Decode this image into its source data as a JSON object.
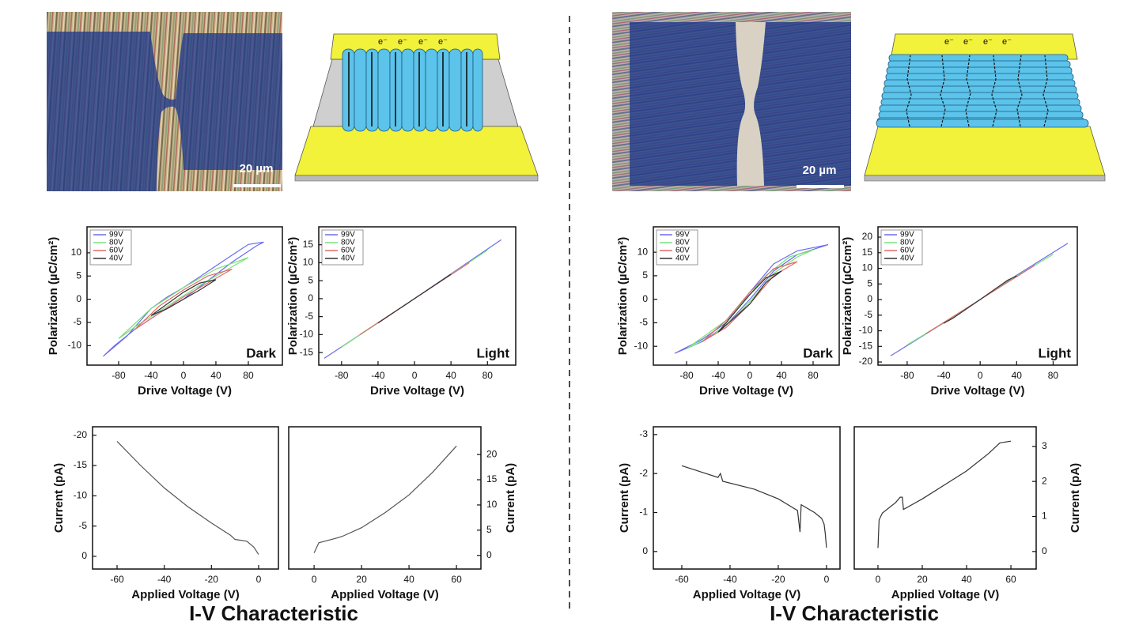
{
  "panels": [
    {
      "scale_bar": "20 µm",
      "electron_labels": [
        "e⁻",
        "e⁻",
        "e⁻",
        "e⁻"
      ],
      "caption": "I-V Characteristic"
    },
    {
      "scale_bar": "20 µm",
      "electron_labels": [
        "e⁻",
        "e⁻",
        "e⁻",
        "e⁻"
      ],
      "caption": "I-V Characteristic"
    }
  ],
  "chart_data": [
    {
      "type": "line",
      "x_label": "Drive Voltage (V)",
      "y_label": "Polarization (µC/cm²)",
      "annotation": "Dark",
      "legend": "upper left",
      "xlim": [
        -119,
        122
      ],
      "ylim": [
        -14.2,
        15.6
      ],
      "xticks": [
        -80,
        -40,
        0,
        40,
        80
      ],
      "yticks": [
        -10,
        -5,
        0,
        5,
        10
      ],
      "series": [
        {
          "name": "99V",
          "color": "#6b6bf0",
          "x": [
            -99,
            -70,
            -40,
            -20,
            0,
            30,
            60,
            80,
            99,
            90,
            60,
            30,
            0,
            -30,
            -60,
            -85,
            -99
          ],
          "values": [
            -12.3,
            -8,
            -2,
            0.5,
            2.5,
            6,
            9.5,
            11.8,
            12.3,
            11.5,
            8,
            4,
            0,
            -3,
            -6.5,
            -10,
            -12.3
          ]
        },
        {
          "name": "80V",
          "color": "#7ae07a",
          "x": [
            -80,
            -40,
            0,
            40,
            80,
            60,
            20,
            -20,
            -60,
            -80
          ],
          "values": [
            -8.5,
            -2,
            2.5,
            6.5,
            9,
            7,
            3,
            -1.5,
            -6,
            -8.5
          ]
        },
        {
          "name": "60V",
          "color": "#e06a6a",
          "x": [
            -60,
            -30,
            0,
            30,
            60,
            30,
            0,
            -30,
            -60
          ],
          "values": [
            -6.5,
            -1.5,
            2,
            5,
            6.5,
            3.5,
            0.5,
            -3,
            -6.5
          ]
        },
        {
          "name": "40V",
          "color": "#333333",
          "x": [
            -40,
            -20,
            0,
            20,
            40,
            20,
            0,
            -20,
            -40
          ],
          "values": [
            -3.5,
            -1,
            1.5,
            3.5,
            4.2,
            2,
            0,
            -2,
            -3.5
          ]
        }
      ]
    },
    {
      "type": "line",
      "x_label": "Drive Voltage (V)",
      "y_label": "Polarization (µC/cm²)",
      "annotation": "Light",
      "legend": "upper left",
      "xlim": [
        -105,
        111
      ],
      "ylim": [
        -18.5,
        20
      ],
      "xticks": [
        -80,
        -40,
        0,
        40,
        80
      ],
      "yticks": [
        -15,
        -10,
        -5,
        0,
        5,
        10,
        15
      ],
      "series": [
        {
          "name": "99V",
          "color": "#6b6bf0",
          "x": [
            -99,
            0,
            95
          ],
          "values": [
            -16.6,
            0,
            16.4
          ]
        },
        {
          "name": "80V",
          "color": "#7ae07a",
          "x": [
            -80,
            0,
            80
          ],
          "values": [
            -13.5,
            0,
            13.5
          ]
        },
        {
          "name": "60V",
          "color": "#e06a6a",
          "x": [
            -60,
            0,
            60
          ],
          "values": [
            -10,
            0,
            10
          ]
        },
        {
          "name": "40V",
          "color": "#333333",
          "x": [
            -40,
            0,
            40
          ],
          "values": [
            -6.8,
            0,
            6.8
          ]
        }
      ]
    },
    {
      "type": "line",
      "x_label": "Drive Voltage (V)",
      "y_label": "Polarization (µC/cm²)",
      "annotation": "Dark",
      "legend": "upper left",
      "xlim": [
        -122,
        113
      ],
      "ylim": [
        -14,
        15.4
      ],
      "xticks": [
        -80,
        -40,
        0,
        40,
        80
      ],
      "yticks": [
        -10,
        -5,
        0,
        5,
        10
      ],
      "series": [
        {
          "name": "99V",
          "color": "#6b6bf0",
          "x": [
            -95,
            -60,
            -30,
            0,
            30,
            60,
            99,
            60,
            30,
            0,
            -30,
            -60,
            -95
          ],
          "values": [
            -11.5,
            -9,
            -5.5,
            0,
            6,
            9.5,
            11.6,
            10.3,
            7.5,
            1.5,
            -5,
            -8.5,
            -11.5
          ]
        },
        {
          "name": "80V",
          "color": "#7ae07a",
          "x": [
            -80,
            -50,
            -20,
            0,
            30,
            60,
            80,
            50,
            20,
            0,
            -30,
            -80
          ],
          "values": [
            -10.5,
            -8,
            -4,
            -0.5,
            5.5,
            9,
            10.5,
            9,
            5,
            1,
            -4.5,
            -10.5
          ]
        },
        {
          "name": "60V",
          "color": "#e06a6a",
          "x": [
            -60,
            -30,
            0,
            30,
            60,
            30,
            0,
            -30,
            -60
          ],
          "values": [
            -9,
            -6,
            -1,
            5,
            8,
            6.5,
            1.5,
            -4.5,
            -9
          ]
        },
        {
          "name": "40V",
          "color": "#333333",
          "x": [
            -40,
            -20,
            0,
            20,
            40,
            20,
            0,
            -20,
            -40
          ],
          "values": [
            -7,
            -4,
            -1,
            3.5,
            6,
            4.5,
            1,
            -3,
            -7
          ]
        }
      ]
    },
    {
      "type": "line",
      "x_label": "Drive Voltage (V)",
      "y_label": "Polarization (µC/cm²)",
      "annotation": "Light",
      "legend": "upper left",
      "xlim": [
        -112,
        106.5
      ],
      "ylim": [
        -21,
        23.3
      ],
      "xticks": [
        -80,
        -40,
        0,
        40,
        80
      ],
      "yticks": [
        -20,
        -15,
        -10,
        -5,
        0,
        5,
        10,
        15,
        20
      ],
      "series": [
        {
          "name": "99V",
          "color": "#6b6bf0",
          "x": [
            -98,
            -40,
            0,
            40,
            96
          ],
          "values": [
            -18,
            -7.5,
            0,
            7.8,
            18
          ]
        },
        {
          "name": "80V",
          "color": "#7ae07a",
          "x": [
            -80,
            -40,
            0,
            40,
            80
          ],
          "values": [
            -14.5,
            -7.5,
            0,
            7.5,
            14.5
          ]
        },
        {
          "name": "60V",
          "color": "#e06a6a",
          "x": [
            -60,
            0,
            60
          ],
          "values": [
            -11,
            0,
            11
          ]
        },
        {
          "name": "40V",
          "color": "#333333",
          "x": [
            -40,
            -30,
            0,
            30,
            40
          ],
          "values": [
            -7.6,
            -6,
            0,
            6.2,
            7.6
          ]
        }
      ]
    },
    {
      "type": "line",
      "x_label": "Applied Voltage (V)",
      "y_label": "Current (pA)",
      "y_axis_side": "left",
      "xlim": [
        -70.4,
        8.4
      ],
      "ylim": [
        2.1,
        -21.4
      ],
      "xticks": [
        -60,
        -40,
        -20,
        0
      ],
      "yticks": [
        -20,
        -15,
        -10,
        -5,
        0
      ],
      "series": [
        {
          "color": "#555555",
          "x": [
            -60,
            -50,
            -40,
            -30,
            -20,
            -12,
            -10,
            -5,
            -2,
            0
          ],
          "values": [
            -19,
            -15,
            -11.3,
            -8.2,
            -5.5,
            -3.5,
            -2.8,
            -2.5,
            -1.5,
            -0.3
          ]
        }
      ]
    },
    {
      "type": "line",
      "x_label": "Applied Voltage (V)",
      "y_label": "Current (pA)",
      "y_axis_side": "right",
      "xlim": [
        -10.7,
        70.3
      ],
      "ylim": [
        -2.7,
        25.5
      ],
      "xticks": [
        0,
        20,
        40,
        60
      ],
      "yticks": [
        0,
        5,
        10,
        15,
        20
      ],
      "series": [
        {
          "color": "#555555",
          "x": [
            0,
            2,
            10,
            12,
            20,
            30,
            40,
            50,
            60
          ],
          "values": [
            0.5,
            2.5,
            3.5,
            3.8,
            5.5,
            8.5,
            12,
            16.5,
            21.7
          ]
        }
      ]
    },
    {
      "type": "line",
      "x_label": "Applied Voltage (V)",
      "y_label": "Current (pA)",
      "y_axis_side": "left",
      "xlim": [
        -71.8,
        5.6
      ],
      "ylim": [
        0.45,
        -3.2
      ],
      "xticks": [
        -60,
        -40,
        -20,
        0
      ],
      "yticks": [
        -3,
        -2,
        -1,
        0
      ],
      "series": [
        {
          "color": "#333333",
          "x": [
            -60,
            -55,
            -45,
            -44,
            -43,
            -30,
            -20,
            -12,
            -11,
            -10.5,
            -5,
            -2,
            -1,
            -0.5,
            0
          ],
          "values": [
            -2.2,
            -2.1,
            -1.9,
            -2,
            -1.8,
            -1.6,
            -1.35,
            -1.05,
            -0.5,
            -1.2,
            -1,
            -0.85,
            -0.7,
            -0.45,
            -0.1
          ]
        }
      ]
    },
    {
      "type": "line",
      "x_label": "Applied Voltage (V)",
      "y_label": "Current (pA)",
      "y_axis_side": "right",
      "xlim": [
        -10.7,
        71.4
      ],
      "ylim": [
        -0.5,
        3.56
      ],
      "xticks": [
        0,
        20,
        40,
        60
      ],
      "yticks": [
        0,
        1,
        2,
        3
      ],
      "series": [
        {
          "color": "#333333",
          "x": [
            0,
            0.5,
            2,
            8,
            10,
            11,
            11.5,
            20,
            30,
            40,
            50,
            55,
            60
          ],
          "values": [
            0.1,
            0.9,
            1.1,
            1.4,
            1.55,
            1.55,
            1.2,
            1.5,
            1.9,
            2.3,
            2.8,
            3.1,
            3.15
          ]
        }
      ]
    }
  ]
}
